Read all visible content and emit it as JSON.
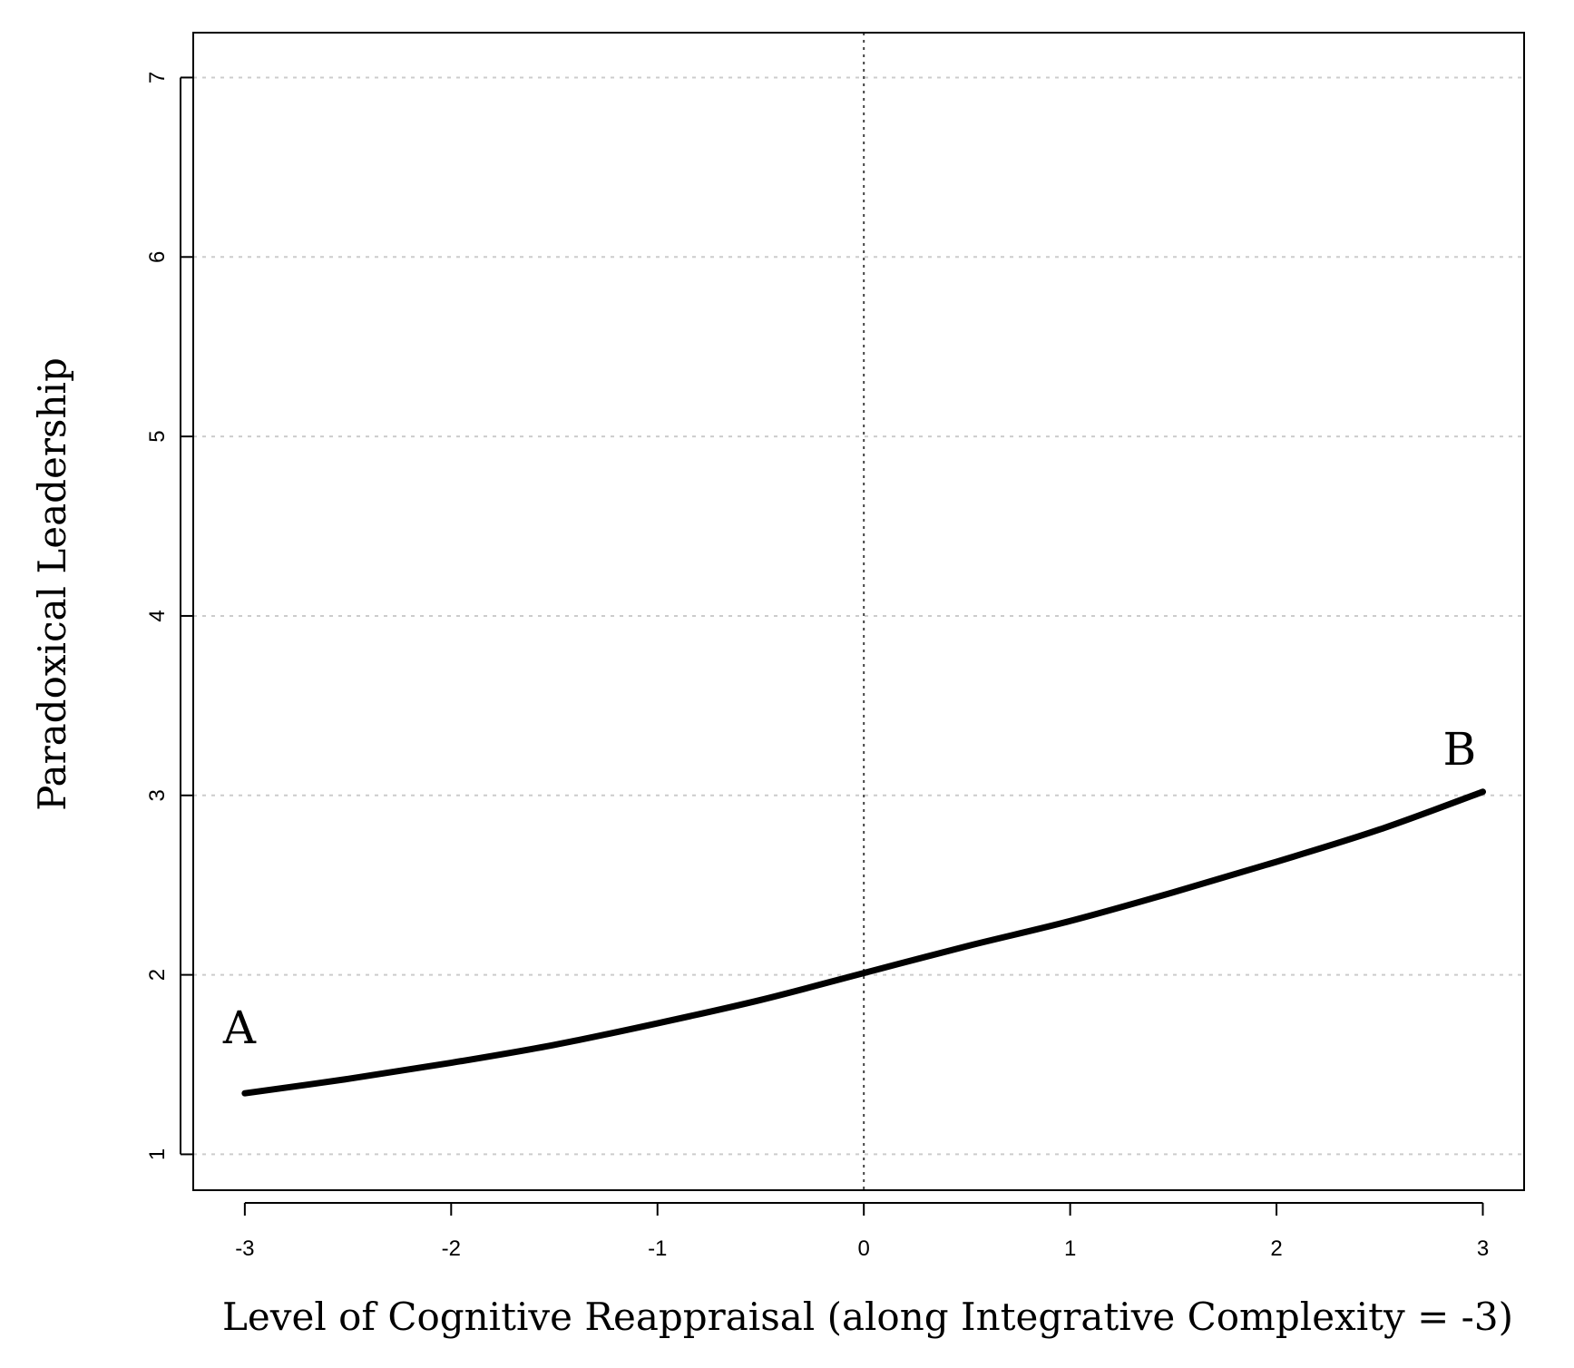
{
  "chart_data": {
    "type": "line",
    "title": "",
    "xlabel": "Level of Cognitive Reappraisal (along Integrative Complexity = -3)",
    "ylabel": "Paradoxical Leadership",
    "xlim": [
      -3.25,
      3.2
    ],
    "ylim": [
      0.8,
      7.25
    ],
    "xticks": [
      -3,
      -2,
      -1,
      0,
      1,
      2,
      3
    ],
    "xtick_labels": [
      "-3",
      "-2",
      "-1",
      "0",
      "1",
      "2",
      "3"
    ],
    "yticks": [
      1,
      2,
      3,
      4,
      5,
      6,
      7
    ],
    "ytick_labels": [
      "1",
      "2",
      "3",
      "4",
      "5",
      "6",
      "7"
    ],
    "grid": "horizontal dotted gridlines at y ticks",
    "reference_line": {
      "x": 0,
      "style": "dotted vertical"
    },
    "series": [
      {
        "x": [
          -3,
          -2.5,
          -2,
          -1.5,
          -1,
          -0.5,
          0,
          0.5,
          1,
          1.5,
          2,
          2.5,
          3
        ],
        "y": [
          1.34,
          1.42,
          1.51,
          1.61,
          1.73,
          1.86,
          2.01,
          2.16,
          2.3,
          2.46,
          2.63,
          2.81,
          3.02
        ]
      }
    ],
    "annotations": [
      {
        "text": "A",
        "x": -3,
        "y": 1.34
      },
      {
        "text": "B",
        "x": 3,
        "y": 3.02
      }
    ],
    "colors": {
      "line": "#000000",
      "grid": "#cccccc"
    }
  }
}
